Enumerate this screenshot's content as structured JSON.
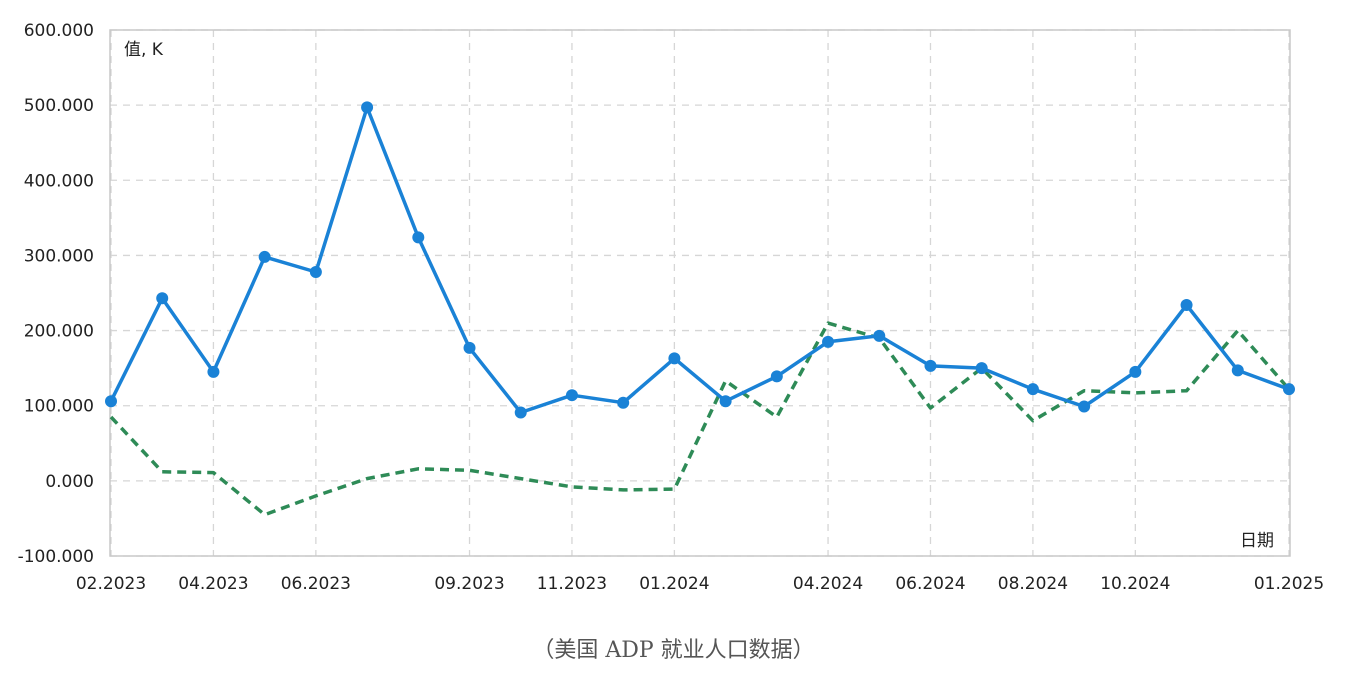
{
  "caption": "（美国 ADP 就业人口数据）",
  "chart_data": {
    "type": "line",
    "title": "",
    "ylabel": "值, K",
    "xlabel": "日期",
    "ylim": [
      -100,
      600
    ],
    "yticks": [
      "600.000",
      "500.000",
      "400.000",
      "300.000",
      "200.000",
      "100.000",
      "0.000",
      "-100.000"
    ],
    "ytick_values": [
      600,
      500,
      400,
      300,
      200,
      100,
      0,
      -100
    ],
    "x": [
      "02.2023",
      "03.2023",
      "04.2023",
      "05.2023",
      "06.2023",
      "07.2023",
      "08.2023",
      "09.2023",
      "10.2023",
      "11.2023",
      "12.2023",
      "01.2024",
      "02.2024",
      "03.2024",
      "04.2024",
      "05.2024",
      "06.2024",
      "07.2024",
      "08.2024",
      "09.2024",
      "10.2024",
      "11.2024",
      "12.2024",
      "01.2025"
    ],
    "xtick_labels": [
      "02.2023",
      "04.2023",
      "06.2023",
      "09.2023",
      "11.2023",
      "01.2024",
      "04.2024",
      "06.2024",
      "08.2024",
      "10.2024",
      "01.2025"
    ],
    "xtick_positions": [
      0,
      2,
      4,
      7,
      9,
      11,
      14,
      16,
      18,
      20,
      23
    ],
    "grid": true,
    "series": [
      {
        "color": "#1a82d6",
        "style": "solid-markers",
        "values": [
          106,
          243,
          145,
          298,
          278,
          497,
          324,
          177,
          91,
          114,
          104,
          163,
          106,
          139,
          185,
          193,
          153,
          150,
          122,
          99,
          145,
          234,
          147,
          122
        ]
      },
      {
        "color": "#2e8b57",
        "style": "dashed",
        "values": [
          85,
          12,
          11,
          -45,
          -20,
          3,
          16,
          14,
          3,
          -8,
          -12,
          -11,
          133,
          85,
          210,
          190,
          97,
          150,
          80,
          120,
          117,
          120,
          200,
          122
        ]
      }
    ]
  }
}
